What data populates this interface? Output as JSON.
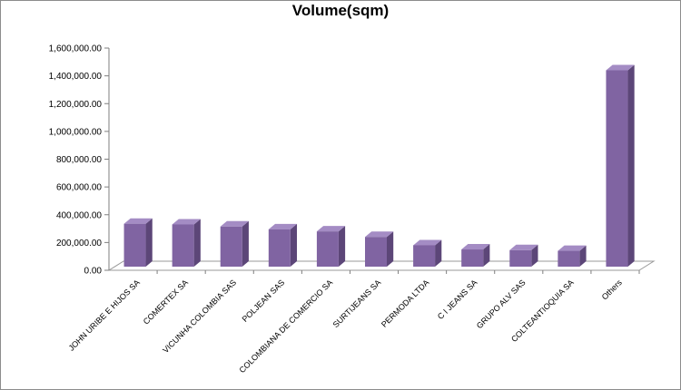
{
  "chart_data": {
    "type": "bar",
    "title": "Volume(sqm)",
    "xlabel": "",
    "ylabel": "",
    "ylim": [
      0,
      1600000
    ],
    "yticks": [
      0,
      200000,
      400000,
      600000,
      800000,
      1000000,
      1200000,
      1400000,
      1600000
    ],
    "ytick_labels": [
      "0.00",
      "200,000.00",
      "400,000.00",
      "600,000.00",
      "800,000.00",
      "1,000,000.00",
      "1,200,000.00",
      "1,400,000.00",
      "1,600,000.00"
    ],
    "categories": [
      "JOHN URIBE E HIJOS SA",
      "COMERTEX SA",
      "VICUNHA COLOMBIA SAS",
      "POLJEAN SAS",
      "COLOMBIANA DE COMERCIO SA",
      "SURTIJEANS SA",
      "PERMODA LTDA",
      "C I JEANS SA",
      "GRUPO ALV SAS",
      "COLTEANTIOQUIA SA",
      "Others"
    ],
    "values": [
      335000,
      330000,
      315000,
      295000,
      280000,
      240000,
      180000,
      150000,
      145000,
      140000,
      1440000
    ],
    "colors": {
      "bar_front": "#8064a2",
      "bar_side": "#5c4678",
      "bar_top": "#a48cc4",
      "floor": "#ffffff"
    },
    "grid": false,
    "legend": "none"
  }
}
